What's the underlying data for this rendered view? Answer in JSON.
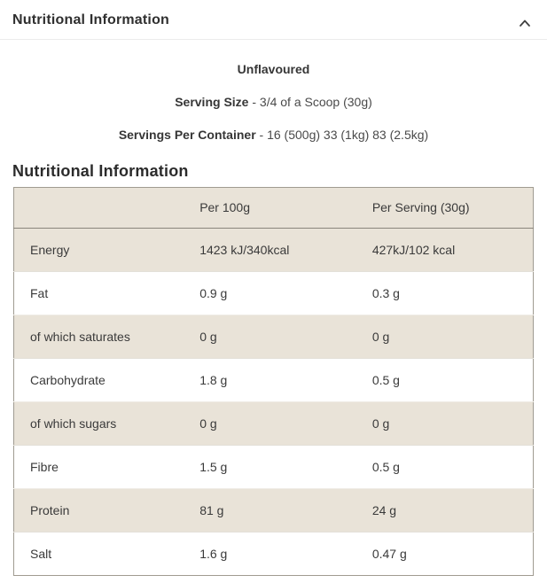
{
  "accordion": {
    "title": "Nutritional Information",
    "chevron_icon": "chevron-up"
  },
  "intro": {
    "flavour": "Unflavoured",
    "serving_size_label": "Serving Size",
    "serving_size_value": " - 3/4 of a Scoop (30g)",
    "servings_per_container_label": "Servings Per Container",
    "servings_per_container_value": " - 16 (500g) 33 (1kg) 83 (2.5kg)"
  },
  "section_title": "Nutritional Information",
  "table": {
    "headers": [
      "",
      "Per 100g",
      "Per Serving (30g)"
    ],
    "rows": [
      {
        "label": "Energy",
        "per_100g": "1423 kJ/340kcal",
        "per_serving": "427kJ/102 kcal"
      },
      {
        "label": "Fat",
        "per_100g": "0.9 g",
        "per_serving": "0.3 g"
      },
      {
        "label": "of which saturates",
        "per_100g": "0 g",
        "per_serving": "0 g"
      },
      {
        "label": "Carbohydrate",
        "per_100g": "1.8 g",
        "per_serving": "0.5 g"
      },
      {
        "label": "of which sugars",
        "per_100g": "0 g",
        "per_serving": "0 g"
      },
      {
        "label": "Fibre",
        "per_100g": "1.5 g",
        "per_serving": "0.5 g"
      },
      {
        "label": "Protein",
        "per_100g": "81 g",
        "per_serving": "24 g"
      },
      {
        "label": "Salt",
        "per_100g": "1.6 g",
        "per_serving": "0.47 g"
      }
    ]
  },
  "colors": {
    "row_beige": "#e9e3d8",
    "table_border": "#a09b91",
    "header_divider": "#8a857b",
    "text": "#333333"
  }
}
